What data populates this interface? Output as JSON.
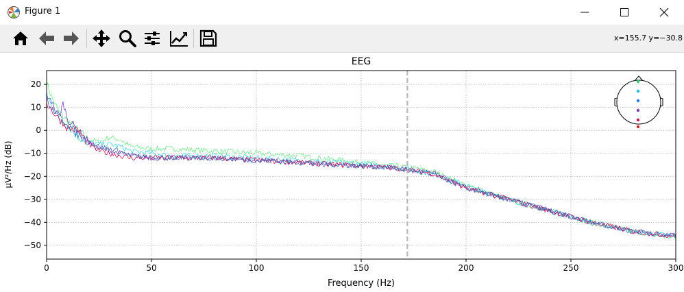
{
  "window": {
    "title": "Figure 1",
    "minimize_icon": "minimize-icon",
    "maximize_icon": "maximize-icon",
    "close_icon": "close-icon"
  },
  "toolbar": {
    "buttons": [
      {
        "name": "home-button",
        "icon": "home-icon"
      },
      {
        "name": "back-button",
        "icon": "arrow-left-icon"
      },
      {
        "name": "forward-button",
        "icon": "arrow-right-icon"
      },
      {
        "name": "pan-button",
        "icon": "move-icon"
      },
      {
        "name": "zoom-button",
        "icon": "magnifier-icon"
      },
      {
        "name": "subplots-button",
        "icon": "sliders-icon"
      },
      {
        "name": "edit-axes-button",
        "icon": "line-chart-icon"
      },
      {
        "name": "save-button",
        "icon": "floppy-disk-icon"
      }
    ],
    "coordinates": "x=155.7 y=−30.8"
  },
  "chart_data": {
    "type": "line",
    "title": "EEG",
    "xlabel": "Frequency (Hz)",
    "ylabel": "µV²/Hz (dB)",
    "xlim": [
      0,
      300
    ],
    "ylim": [
      -56,
      26
    ],
    "xticks": [
      0,
      50,
      100,
      150,
      200,
      250,
      300
    ],
    "yticks": [
      20,
      10,
      0,
      -10,
      -20,
      -30,
      -40,
      -50
    ],
    "grid": true,
    "vline": {
      "x": 172,
      "style": "dashed",
      "color": "#b8b8b8"
    },
    "sensor_inset": {
      "placement": "top-right",
      "colors": [
        "#2ecc71",
        "#17becf",
        "#1f77e6",
        "#7b3fb5",
        "#c2185b",
        "#c62828"
      ]
    },
    "series": [
      {
        "color": "#6fe88a",
        "x": [
          0,
          3,
          6,
          10,
          15,
          20,
          25,
          30,
          35,
          40,
          50,
          60,
          80,
          100,
          120,
          140,
          160,
          172,
          185,
          200,
          220,
          240,
          260,
          280,
          300
        ],
        "y": [
          21,
          13,
          8,
          4,
          0,
          -4,
          -5,
          -3,
          -4,
          -7,
          -8,
          -8,
          -9,
          -10,
          -11,
          -13,
          -15,
          -16,
          -18,
          -24,
          -30,
          -35,
          -40,
          -44,
          -47
        ]
      },
      {
        "color": "#44d3df",
        "x": [
          0,
          3,
          6,
          10,
          15,
          20,
          25,
          30,
          35,
          40,
          50,
          60,
          80,
          100,
          120,
          140,
          160,
          172,
          185,
          200,
          220,
          240,
          260,
          280,
          300
        ],
        "y": [
          15,
          10,
          5,
          2,
          -3,
          -5,
          -6,
          -6,
          -7,
          -9,
          -10,
          -11,
          -11,
          -12,
          -13,
          -14,
          -15,
          -17,
          -19,
          -24,
          -30,
          -35,
          -40,
          -44,
          -46
        ]
      },
      {
        "color": "#7b3fb5",
        "x": [
          0,
          3,
          6,
          8,
          10,
          15,
          20,
          25,
          30,
          35,
          40,
          50,
          60,
          80,
          100,
          120,
          140,
          160,
          172,
          185,
          200,
          220,
          240,
          260,
          280,
          300
        ],
        "y": [
          13,
          9,
          6,
          12,
          5,
          0,
          -5,
          -8,
          -9,
          -10,
          -11,
          -12,
          -12,
          -12,
          -13,
          -14,
          -15,
          -16,
          -17,
          -19,
          -25,
          -30,
          -35,
          -40,
          -44,
          -46
        ]
      },
      {
        "color": "#c2185b",
        "x": [
          0,
          3,
          6,
          10,
          15,
          20,
          25,
          30,
          35,
          40,
          50,
          60,
          80,
          100,
          120,
          140,
          160,
          172,
          185,
          200,
          220,
          240,
          260,
          280,
          300
        ],
        "y": [
          12,
          8,
          5,
          1,
          0,
          -6,
          -9,
          -10,
          -11,
          -12,
          -12,
          -12,
          -12,
          -13,
          -14,
          -15,
          -16,
          -17,
          -19,
          -25,
          -30,
          -35,
          -40,
          -44,
          -46
        ]
      },
      {
        "color": "#3f6fb7",
        "x": [
          0,
          3,
          6,
          10,
          15,
          20,
          25,
          30,
          35,
          40,
          50,
          60,
          80,
          100,
          120,
          140,
          160,
          172,
          185,
          200,
          220,
          240,
          260,
          280,
          300
        ],
        "y": [
          16,
          11,
          6,
          3,
          -2,
          -5,
          -7,
          -8,
          -9,
          -11,
          -12,
          -12,
          -12,
          -13,
          -14,
          -15,
          -16,
          -17,
          -19,
          -25,
          -30,
          -35,
          -40,
          -44,
          -46
        ]
      }
    ]
  }
}
